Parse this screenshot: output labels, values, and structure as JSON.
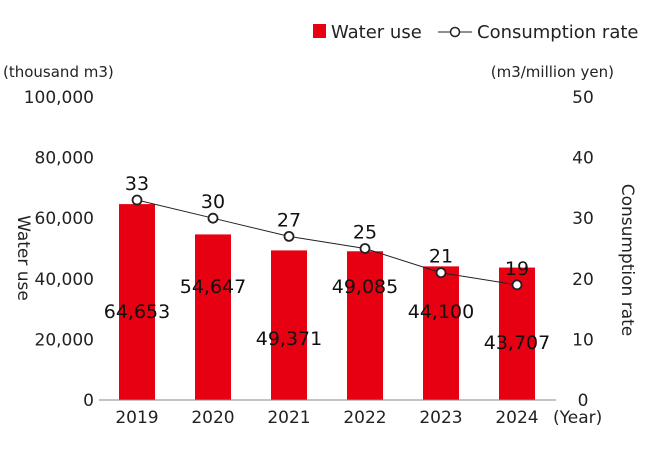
{
  "chart_data": {
    "type": "bar+line",
    "categories": [
      "2019",
      "2020",
      "2021",
      "2022",
      "2023",
      "2024"
    ],
    "xlabel": "(Year)",
    "series": [
      {
        "name": "Water use",
        "type": "bar",
        "axis": "left",
        "color": "#e60012",
        "values": [
          64653,
          54647,
          49371,
          49085,
          44100,
          43707
        ],
        "labels": [
          "64,653",
          "54,647",
          "49,371",
          "49,085",
          "44,100",
          "43,707"
        ]
      },
      {
        "name": "Consumption rate",
        "type": "line",
        "axis": "right",
        "color": "#222222",
        "marker": "open-circle",
        "values": [
          33,
          30,
          27,
          25,
          21,
          19
        ],
        "labels": [
          "33",
          "30",
          "27",
          "25",
          "21",
          "19"
        ]
      }
    ],
    "left_axis": {
      "label": "Water use",
      "unit": "(thousand m3)",
      "range": [
        0,
        100000
      ],
      "ticks": [
        "0",
        "20,000",
        "40,000",
        "60,000",
        "80,000",
        "100,000"
      ]
    },
    "right_axis": {
      "label": "Consumption rate",
      "unit": "(m3/million yen)",
      "range": [
        0,
        50
      ],
      "ticks": [
        "0",
        "10",
        "20",
        "30",
        "40",
        "50"
      ]
    },
    "grid": false,
    "legend": "top-right"
  }
}
